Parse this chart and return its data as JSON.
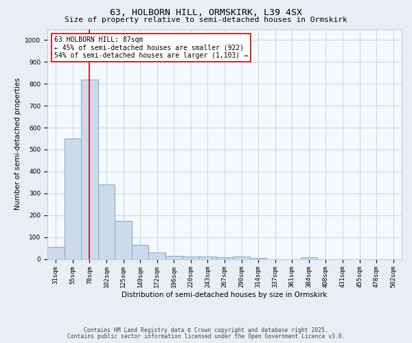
{
  "title": "63, HOLBORN HILL, ORMSKIRK, L39 4SX",
  "subtitle": "Size of property relative to semi-detached houses in Ormskirk",
  "xlabel": "Distribution of semi-detached houses by size in Ormskirk",
  "ylabel": "Number of semi-detached properties",
  "categories": [
    "31sqm",
    "55sqm",
    "78sqm",
    "102sqm",
    "125sqm",
    "149sqm",
    "172sqm",
    "196sqm",
    "220sqm",
    "243sqm",
    "267sqm",
    "290sqm",
    "314sqm",
    "337sqm",
    "361sqm",
    "384sqm",
    "408sqm",
    "431sqm",
    "455sqm",
    "478sqm",
    "502sqm"
  ],
  "values": [
    55,
    550,
    820,
    340,
    175,
    65,
    30,
    15,
    12,
    10,
    8,
    10,
    5,
    0,
    0,
    7,
    0,
    0,
    0,
    0,
    0
  ],
  "bar_color": "#ccdaeb",
  "bar_edge_color": "#7aaac8",
  "vline_x_index": 2,
  "vline_color": "#cc0000",
  "annotation_text": "63 HOLBORN HILL: 87sqm\n← 45% of semi-detached houses are smaller (922)\n54% of semi-detached houses are larger (1,103) →",
  "annotation_box_facecolor": "#ffffff",
  "annotation_box_edgecolor": "#cc0000",
  "ylim": [
    0,
    1050
  ],
  "yticks": [
    0,
    100,
    200,
    300,
    400,
    500,
    600,
    700,
    800,
    900,
    1000
  ],
  "footnote1": "Contains HM Land Registry data © Crown copyright and database right 2025.",
  "footnote2": "Contains public sector information licensed under the Open Government Licence v3.0.",
  "bg_color": "#e8eef4",
  "plot_bg_color": "#f5f8fc",
  "grid_color": "#b8c8d8",
  "title_fontsize": 9.5,
  "subtitle_fontsize": 8,
  "tick_fontsize": 6.5,
  "ylabel_fontsize": 7.5,
  "xlabel_fontsize": 7.5,
  "footnote_fontsize": 5.8,
  "annotation_fontsize": 7
}
